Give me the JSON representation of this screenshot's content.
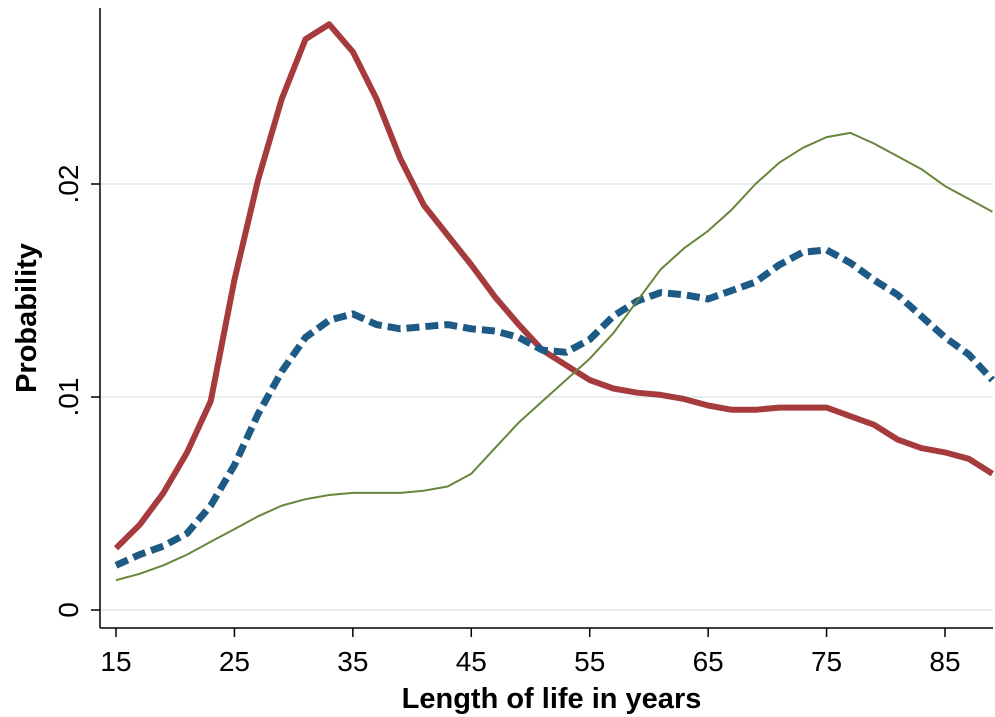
{
  "chart_data": {
    "type": "line",
    "title": "",
    "xlabel": "Length of life in years",
    "ylabel": "Probability",
    "xlim": [
      15,
      89
    ],
    "ylim": [
      0,
      0.0275
    ],
    "x_ticks": [
      15,
      25,
      35,
      45,
      55,
      65,
      75,
      85
    ],
    "x_tick_labels": [
      "15",
      "25",
      "35",
      "45",
      "55",
      "65",
      "75",
      "85"
    ],
    "y_ticks": [
      0,
      0.01,
      0.02
    ],
    "y_tick_labels": [
      "0",
      ".01",
      ".02"
    ],
    "grid": "horizontal",
    "legend": "none",
    "x": [
      15,
      17,
      19,
      21,
      23,
      25,
      27,
      29,
      31,
      33,
      35,
      37,
      39,
      41,
      43,
      45,
      47,
      49,
      51,
      53,
      55,
      57,
      59,
      61,
      63,
      65,
      67,
      69,
      71,
      73,
      75,
      77,
      79,
      81,
      83,
      85,
      87,
      89
    ],
    "series": [
      {
        "color": "#a63b3e",
        "style": "solid-thick",
        "values": [
          0.0029,
          0.004,
          0.0055,
          0.0074,
          0.0098,
          0.0155,
          0.0202,
          0.024,
          0.0268,
          0.0275,
          0.0262,
          0.024,
          0.0212,
          0.019,
          0.0176,
          0.0162,
          0.0147,
          0.0134,
          0.0122,
          0.0115,
          0.0108,
          0.0104,
          0.0102,
          0.0101,
          0.0099,
          0.0096,
          0.0094,
          0.0094,
          0.0095,
          0.0095,
          0.0095,
          0.0091,
          0.0087,
          0.008,
          0.0076,
          0.0074,
          0.0071,
          0.0064
        ]
      },
      {
        "color": "#1e5a86",
        "style": "dashed-thick",
        "values": [
          0.0021,
          0.0026,
          0.003,
          0.0036,
          0.0049,
          0.0068,
          0.0092,
          0.0112,
          0.0128,
          0.0136,
          0.0139,
          0.0134,
          0.0132,
          0.0133,
          0.0134,
          0.0132,
          0.0131,
          0.0128,
          0.0122,
          0.0121,
          0.0127,
          0.0138,
          0.0145,
          0.0149,
          0.0148,
          0.0146,
          0.015,
          0.0154,
          0.0162,
          0.0168,
          0.0169,
          0.0163,
          0.0155,
          0.0148,
          0.0138,
          0.0128,
          0.012,
          0.0108
        ]
      },
      {
        "color": "#66873a",
        "style": "solid-thin",
        "values": [
          0.0014,
          0.0017,
          0.0021,
          0.0026,
          0.0032,
          0.0038,
          0.0044,
          0.0049,
          0.0052,
          0.0054,
          0.0055,
          0.0055,
          0.0055,
          0.0056,
          0.0058,
          0.0064,
          0.0076,
          0.0088,
          0.0098,
          0.0108,
          0.0118,
          0.013,
          0.0145,
          0.016,
          0.017,
          0.0178,
          0.0188,
          0.02,
          0.021,
          0.0217,
          0.0222,
          0.0224,
          0.0219,
          0.0213,
          0.0207,
          0.0199,
          0.0193,
          0.0187
        ]
      }
    ]
  }
}
